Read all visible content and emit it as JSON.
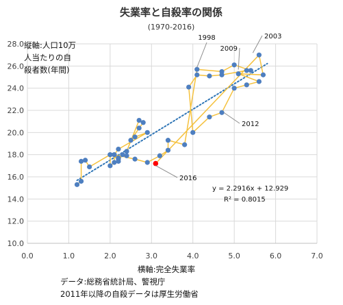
{
  "chart_data": {
    "type": "scatter",
    "title": "失業率と自殺率の関係",
    "subtitle": "(1970-2016)",
    "ylabel_lines": [
      "縦軸:人口10万",
      "人当たりの自",
      "殺者数(年間)"
    ],
    "xlabel": "横軸:完全失業率",
    "source_lines": [
      "データ:総務省統計局、警視庁",
      "2011年以降の自殺データは厚生労働省"
    ],
    "xlim": [
      0.0,
      7.0
    ],
    "ylim": [
      10.0,
      28.0
    ],
    "x_ticks": [
      "0.0",
      "1.0",
      "2.0",
      "3.0",
      "4.0",
      "5.0",
      "6.0",
      "7.0"
    ],
    "y_ticks": [
      "10.0",
      "12.0",
      "14.0",
      "16.0",
      "18.0",
      "20.0",
      "22.0",
      "24.0",
      "26.0",
      "28.0"
    ],
    "grid": true,
    "series": [
      {
        "color": "#4e7fc0",
        "line_color": "#f5c13d",
        "points": [
          [
            1.2,
            15.3
          ],
          [
            1.3,
            15.6
          ],
          [
            1.3,
            17.4
          ],
          [
            1.4,
            17.5
          ],
          [
            1.5,
            16.9
          ],
          [
            2.0,
            18.0
          ],
          [
            2.0,
            17.0
          ],
          [
            2.1,
            17.3
          ],
          [
            2.1,
            18.0
          ],
          [
            2.2,
            17.6
          ],
          [
            2.0,
            18.0
          ],
          [
            2.2,
            17.7
          ],
          [
            2.2,
            17.4
          ],
          [
            2.3,
            18.0
          ],
          [
            2.4,
            17.9
          ],
          [
            2.4,
            18.3
          ],
          [
            2.7,
            21.1
          ],
          [
            2.8,
            20.9
          ],
          [
            2.7,
            20.4
          ],
          [
            2.5,
            19.3
          ],
          [
            2.6,
            19.6
          ],
          [
            2.9,
            20.0
          ],
          [
            2.2,
            18.5
          ],
          [
            2.1,
            18.0
          ],
          [
            2.6,
            17.6
          ],
          [
            2.9,
            17.3
          ],
          [
            3.2,
            17.9
          ],
          [
            3.4,
            18.4
          ],
          [
            3.4,
            19.3
          ],
          [
            3.8,
            18.9
          ],
          [
            4.1,
            25.7
          ],
          [
            4.7,
            25.5
          ],
          [
            5.0,
            26.1
          ],
          [
            5.4,
            25.6
          ],
          [
            5.3,
            25.6
          ],
          [
            4.7,
            25.2
          ],
          [
            4.4,
            25.1
          ],
          [
            4.1,
            25.2
          ],
          [
            3.9,
            24.1
          ],
          [
            4.0,
            20.0
          ],
          [
            4.4,
            21.4
          ],
          [
            4.7,
            21.8
          ],
          [
            5.0,
            24.0
          ],
          [
            5.3,
            24.3
          ],
          [
            5.6,
            24.6
          ],
          [
            5.1,
            25.3
          ],
          [
            5.7,
            25.2
          ],
          [
            5.6,
            27.0
          ]
        ]
      }
    ],
    "highlight": {
      "label": "2016",
      "x": 3.1,
      "y": 17.2,
      "color": "#ff0000"
    },
    "annotations": [
      {
        "label": "1998",
        "x": 4.1,
        "y": 25.7
      },
      {
        "label": "2003",
        "x": 5.4,
        "y": 27.0
      },
      {
        "label": "2009",
        "x": 5.1,
        "y": 25.5
      },
      {
        "label": "2012",
        "x": 4.7,
        "y": 21.8
      }
    ],
    "trendline": {
      "slope": 2.2916,
      "intercept": 12.929,
      "x_range": [
        1.2,
        5.8
      ],
      "color": "#2e75b6",
      "style": "dotted",
      "equation": "y = 2.2916x + 12.929",
      "r2": "R² = 0.8015"
    }
  }
}
